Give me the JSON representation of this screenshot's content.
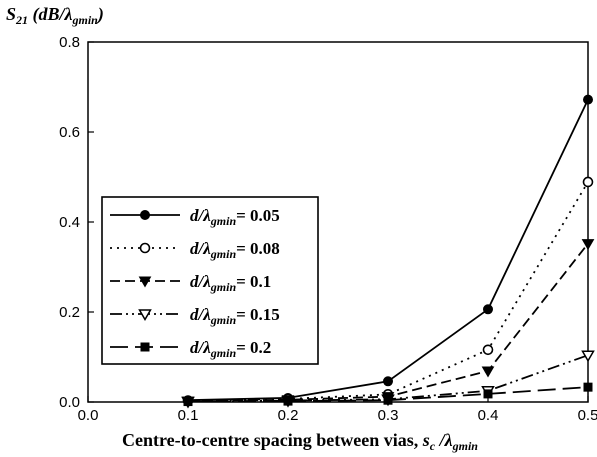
{
  "chart_data": {
    "type": "line",
    "ylabel": {
      "main": "S",
      "sub": "21",
      "rest": " (dB/λ",
      "rest_sub": "gmin",
      "close": ")"
    },
    "xlabel": {
      "main": "Centre-to-centre spacing between vias,  ",
      "var": "s",
      "var_sub": "c",
      "rest": " /λ",
      "rest_sub": "gmin"
    },
    "xlim": [
      0.0,
      0.5
    ],
    "ylim": [
      0.0,
      0.8
    ],
    "xticks": [
      "0.0",
      "0.1",
      "0.2",
      "0.3",
      "0.4",
      "0.5"
    ],
    "yticks": [
      "0.0",
      "0.2",
      "0.4",
      "0.6",
      "0.8"
    ],
    "grid": false,
    "legend_position": "center-left",
    "x": [
      0.1,
      0.2,
      0.3,
      0.4,
      0.5
    ],
    "series": [
      {
        "label_prefix": "d/λ",
        "label_sub": "gmin",
        "label_suffix": "= 0.05",
        "marker": "circle-filled",
        "dash": "solid",
        "values": [
          0.004,
          0.009,
          0.046,
          0.206,
          0.672
        ]
      },
      {
        "label_prefix": "d/λ",
        "label_sub": "gmin",
        "label_suffix": "= 0.08",
        "marker": "circle-open",
        "dash": "dotted",
        "values": [
          0.003,
          0.007,
          0.017,
          0.116,
          0.489
        ]
      },
      {
        "label_prefix": "d/λ",
        "label_sub": "gmin",
        "label_suffix": "= 0.1",
        "marker": "triangle-down-filled",
        "dash": "dashed",
        "values": [
          0.002,
          0.005,
          0.012,
          0.069,
          0.352
        ]
      },
      {
        "label_prefix": "d/λ",
        "label_sub": "gmin",
        "label_suffix": "= 0.15",
        "marker": "triangle-down-open",
        "dash": "dash-dot-dot",
        "values": [
          0.001,
          0.003,
          0.006,
          0.025,
          0.104
        ]
      },
      {
        "label_prefix": "d/λ",
        "label_sub": "gmin",
        "label_suffix": "= 0.2",
        "marker": "square-filled",
        "dash": "long-dash",
        "values": [
          0.001,
          0.002,
          0.004,
          0.018,
          0.033
        ]
      }
    ]
  }
}
